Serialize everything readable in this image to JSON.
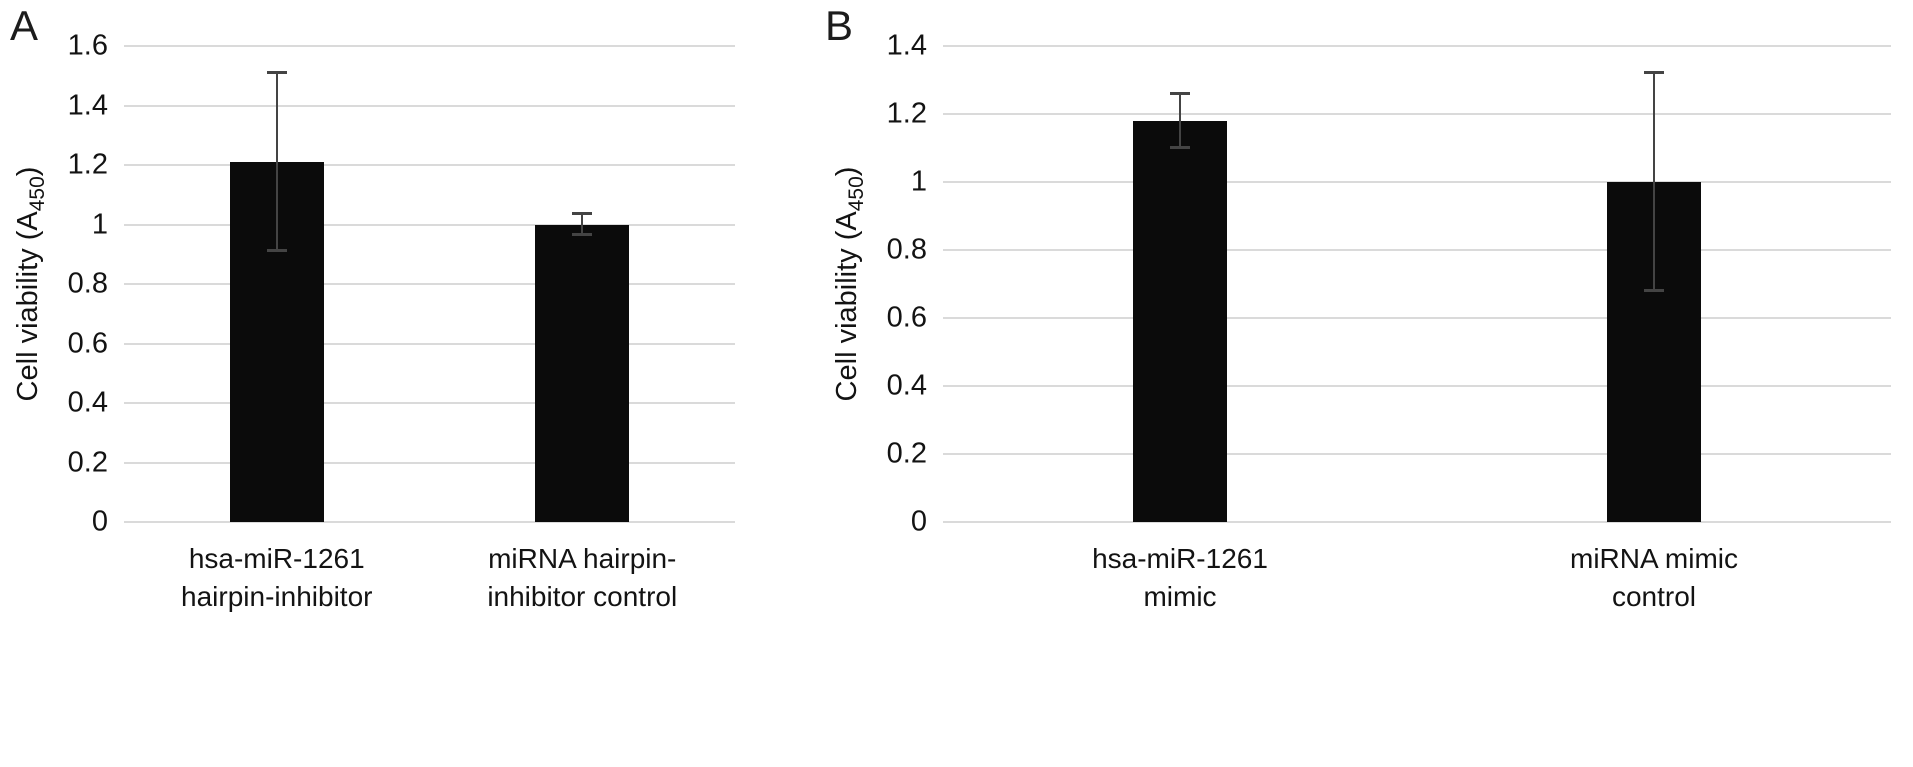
{
  "figure": {
    "background": "#ffffff"
  },
  "chart_data": [
    {
      "type": "bar",
      "panel_label": "A",
      "title": "",
      "xlabel": "",
      "ylabel": "Cell viability (A450)",
      "ylabel_parts": {
        "pre": "Cell viability (A",
        "sub": "450",
        "post": ")"
      },
      "ylim": [
        0,
        1.6
      ],
      "yticks": [
        0,
        0.2,
        0.4,
        0.6,
        0.8,
        1,
        1.2,
        1.4,
        1.6
      ],
      "categories": [
        "hsa-miR-1261\nhairpin-inhibitor",
        "miRNA hairpin-\ninhibitor control"
      ],
      "values": [
        1.21,
        1.0
      ],
      "errors": [
        0.3,
        0.035
      ],
      "grid": true,
      "legend": false,
      "bar_color": "#0b0b0b",
      "grid_color": "#dadada",
      "error_color": "#444444"
    },
    {
      "type": "bar",
      "panel_label": "B",
      "title": "",
      "xlabel": "",
      "ylabel": "Cell viability (A450)",
      "ylabel_parts": {
        "pre": "Cell viability (A",
        "sub": "450",
        "post": ")"
      },
      "ylim": [
        0,
        1.4
      ],
      "yticks": [
        0,
        0.2,
        0.4,
        0.6,
        0.8,
        1,
        1.2,
        1.4
      ],
      "categories": [
        "hsa-miR-1261\nmimic",
        "miRNA mimic\ncontrol"
      ],
      "values": [
        1.18,
        1.0
      ],
      "errors": [
        0.08,
        0.32
      ],
      "grid": true,
      "legend": false,
      "bar_color": "#0b0b0b",
      "grid_color": "#dadada",
      "error_color": "#444444"
    }
  ]
}
